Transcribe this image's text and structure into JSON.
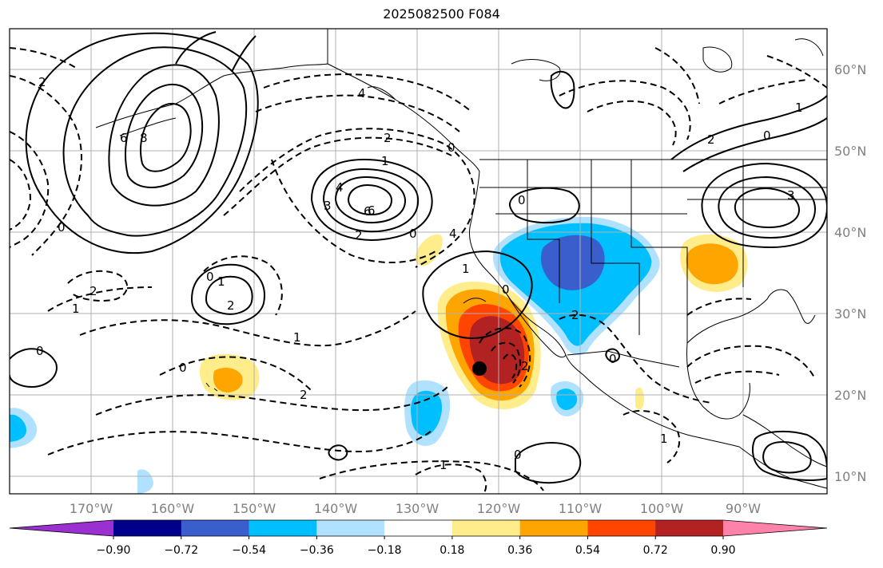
{
  "title": "2025082500 F084",
  "lat_labels": [
    "60°N",
    "50°N",
    "40°N",
    "30°N",
    "20°N",
    "10°N"
  ],
  "lon_labels": [
    "170°W",
    "160°W",
    "150°W",
    "140°W",
    "130°W",
    "120°W",
    "110°W",
    "100°W",
    "90°W"
  ],
  "colorbar": {
    "colors": [
      "#9b30d0",
      "#00008b",
      "#3a5fcd",
      "#00bfff",
      "#b0e2ff",
      "#ffffff",
      "#ffec8b",
      "#ffa500",
      "#ff4500",
      "#b22222",
      "#ff82ab"
    ],
    "tick_labels": [
      "−0.90",
      "−0.72",
      "−0.54",
      "−0.36",
      "−0.18",
      "0.18",
      "0.36",
      "0.54",
      "0.72",
      "0.90"
    ]
  },
  "contour_labels": [
    "0",
    "2",
    "4",
    "6",
    "8",
    "0",
    "2",
    "6",
    "1",
    "2",
    "1",
    "2",
    "0",
    "0",
    "2",
    "1",
    "3",
    "6",
    "4",
    "0",
    "1",
    "2",
    "4",
    "0",
    "1",
    "2",
    "0",
    "1",
    "0",
    "2",
    "0",
    "1",
    "2",
    "3",
    "0",
    "1",
    "0"
  ],
  "marker": "black-dot"
}
